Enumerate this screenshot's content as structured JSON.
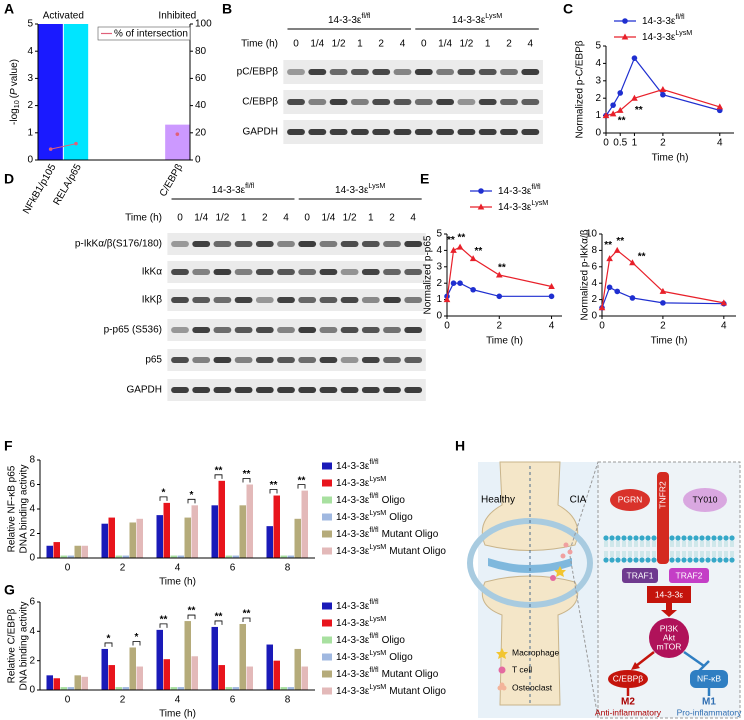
{
  "panel_labels": [
    "A",
    "B",
    "C",
    "D",
    "E",
    "F",
    "G",
    "H"
  ],
  "panel_a": {
    "type": "bar",
    "group_labels": [
      "Activated",
      "Inhibited"
    ],
    "y_label_parts": [
      "-log",
      "10",
      "(",
      "P",
      "value)"
    ],
    "categories": [
      "NFkB1/p105",
      "RELA/p65",
      null,
      null,
      null,
      "C/EBPβ"
    ],
    "values": [
      5,
      5,
      null,
      null,
      null,
      1.3
    ],
    "colors": [
      "#1a1aff",
      "#00e5ff",
      null,
      null,
      null,
      "#cc99ff"
    ],
    "line": {
      "name": "% of intersection",
      "color": "#e0607a",
      "values": [
        8,
        12,
        null,
        null,
        null,
        19
      ],
      "axis": "y2"
    },
    "ylim": [
      0,
      5
    ],
    "yticks": [
      0,
      1,
      2,
      3,
      4,
      5
    ],
    "y2lim": [
      0,
      100
    ],
    "y2ticks": [
      0,
      20,
      40,
      60,
      80,
      100
    ]
  },
  "panel_b": {
    "groups": [
      {
        "base": "14-3-3ε",
        "sup": "fl/fl"
      },
      {
        "base": "14-3-3ε",
        "sup": "LysM"
      }
    ],
    "time_label": "Time (h)",
    "times": [
      "0",
      "1/4",
      "1/2",
      "1",
      "2",
      "4"
    ],
    "rows": [
      "pC/EBPβ",
      "C/EBPβ",
      "GAPDH"
    ]
  },
  "panel_c": {
    "type": "line",
    "y_label": "Normalized p-C/EBPβ",
    "x_label": "Time (h)",
    "x": [
      0,
      0.25,
      0.5,
      1,
      2,
      4
    ],
    "series": [
      {
        "name": "14-3-3ε",
        "name_sup": "fl/fl",
        "color": "#1f2fd0",
        "marker": "circle",
        "values": [
          1.0,
          1.6,
          2.3,
          4.3,
          2.2,
          1.3
        ]
      },
      {
        "name": "14-3-3ε",
        "name_sup": "LysM",
        "color": "#e8202a",
        "marker": "triangle",
        "values": [
          1.0,
          1.1,
          1.3,
          2.0,
          2.5,
          1.5
        ]
      }
    ],
    "annotations": [
      "**",
      "**"
    ],
    "xlim": [
      0,
      4.5
    ],
    "xticks": [
      0,
      0.5,
      1,
      2,
      4
    ],
    "ylim": [
      0,
      5
    ],
    "yticks": [
      0,
      1,
      2,
      3,
      4,
      5
    ]
  },
  "panel_d": {
    "groups": [
      {
        "base": "14-3-3ε",
        "sup": "fl/fl"
      },
      {
        "base": "14-3-3ε",
        "sup": "LysM"
      }
    ],
    "time_label": "Time (h)",
    "times": [
      "0",
      "1/4",
      "1/2",
      "1",
      "2",
      "4"
    ],
    "rows": [
      "p-IkKα/β(S176/180)",
      "IkKα",
      "IkKβ",
      "p-p65 (S536)",
      "p65",
      "GAPDH"
    ]
  },
  "panel_e": {
    "legend": [
      {
        "name": "14-3-3ε",
        "name_sup": "fl/fl",
        "color": "#1f2fd0",
        "marker": "circle"
      },
      {
        "name": "14-3-3ε",
        "name_sup": "LysM",
        "color": "#e8202a",
        "marker": "triangle"
      }
    ],
    "charts": [
      {
        "type": "line",
        "y_label": "Normalized p-p65",
        "x_label": "Time (h)",
        "x": [
          0,
          0.25,
          0.5,
          1,
          2,
          4
        ],
        "series": [
          {
            "values": [
              1.2,
              2.0,
              2.0,
              1.6,
              1.2,
              1.2
            ]
          },
          {
            "values": [
              1.0,
              4.0,
              4.2,
              3.5,
              2.5,
              1.8
            ]
          }
        ],
        "annotations": [
          "**",
          "**",
          "**",
          "**"
        ],
        "xlim": [
          0,
          4.4
        ],
        "xticks": [
          0,
          2,
          4
        ],
        "ylim": [
          0,
          5
        ],
        "yticks": [
          0,
          1,
          2,
          3,
          4,
          5
        ]
      },
      {
        "type": "line",
        "y_label": "Normalized p-IkKα/β",
        "x_label": "Time (h)",
        "x": [
          0,
          0.25,
          0.5,
          1,
          2,
          4
        ],
        "series": [
          {
            "values": [
              1.0,
              3.5,
              3.0,
              2.2,
              1.6,
              1.5
            ]
          },
          {
            "values": [
              1.0,
              7.0,
              8.0,
              6.5,
              3.0,
              1.6
            ]
          }
        ],
        "annotations": [
          "**",
          "**",
          "**"
        ],
        "xlim": [
          0,
          4.4
        ],
        "xticks": [
          0,
          2,
          4
        ],
        "ylim": [
          0,
          10
        ],
        "yticks": [
          0,
          2,
          4,
          6,
          8,
          10
        ]
      }
    ]
  },
  "panel_f": {
    "type": "bar",
    "y_label": [
      "Relative NF-κB p65",
      "DNA binding activity"
    ],
    "x_label": "Time (h)",
    "categories": [
      "0",
      "2",
      "4",
      "6",
      "8"
    ],
    "series": [
      {
        "name": "14-3-3ε",
        "name_sup": "fl/fl",
        "color": "#1a1ab8",
        "values": [
          1.0,
          2.8,
          3.5,
          4.3,
          2.6
        ]
      },
      {
        "name": "14-3-3ε",
        "name_sup": "LysM",
        "color": "#e8141c",
        "values": [
          1.3,
          3.3,
          4.5,
          6.3,
          5.1
        ]
      },
      {
        "name": "14-3-3ε",
        "name_sup": "fl/fl",
        "name_suffix": "Oligo",
        "color": "#a8e0a0",
        "values": [
          0.2,
          0.2,
          0.2,
          0.2,
          0.2
        ]
      },
      {
        "name": "14-3-3ε",
        "name_sup": "LysM",
        "name_suffix": "Oligo",
        "color": "#a0b8e0",
        "values": [
          0.2,
          0.2,
          0.2,
          0.2,
          0.2
        ]
      },
      {
        "name": "14-3-3ε",
        "name_sup": "fl/fl",
        "name_suffix": "Mutant Oligo",
        "color": "#b5ab7a",
        "values": [
          1.0,
          2.9,
          3.3,
          4.3,
          3.2
        ]
      },
      {
        "name": "14-3-3ε",
        "name_sup": "LysM",
        "name_suffix": "Mutant Oligo",
        "color": "#e3b9b9",
        "values": [
          1.0,
          3.2,
          4.3,
          6.0,
          5.5
        ]
      }
    ],
    "annotations": [
      "*",
      "*",
      "**",
      "**",
      "**",
      "**"
    ],
    "ylim": [
      0,
      8
    ],
    "yticks": [
      0,
      2,
      4,
      6,
      8
    ]
  },
  "panel_g": {
    "type": "bar",
    "y_label": [
      "Relative C/EBPβ",
      "DNA binding activity"
    ],
    "x_label": "Time (h)",
    "categories": [
      "0",
      "2",
      "4",
      "6",
      "8"
    ],
    "series": [
      {
        "name": "14-3-3ε",
        "name_sup": "fl/fl",
        "color": "#1a1ab8",
        "values": [
          1.0,
          2.8,
          4.1,
          4.3,
          3.1
        ]
      },
      {
        "name": "14-3-3ε",
        "name_sup": "LysM",
        "color": "#e8141c",
        "values": [
          0.8,
          1.7,
          2.1,
          1.7,
          2.0
        ]
      },
      {
        "name": "14-3-3ε",
        "name_sup": "fl/fl",
        "name_suffix": "Oligo",
        "color": "#a8e0a0",
        "values": [
          0.2,
          0.2,
          0.2,
          0.2,
          0.2
        ]
      },
      {
        "name": "14-3-3ε",
        "name_sup": "LysM",
        "name_suffix": "Oligo",
        "color": "#a0b8e0",
        "values": [
          0.2,
          0.2,
          0.2,
          0.2,
          0.2
        ]
      },
      {
        "name": "14-3-3ε",
        "name_sup": "fl/fl",
        "name_suffix": "Mutant Oligo",
        "color": "#b5ab7a",
        "values": [
          1.0,
          2.9,
          4.7,
          4.5,
          2.8
        ]
      },
      {
        "name": "14-3-3ε",
        "name_sup": "LysM",
        "name_suffix": "Mutant Oligo",
        "color": "#e3b9b9",
        "values": [
          0.9,
          1.6,
          2.3,
          1.6,
          1.6
        ]
      }
    ],
    "annotations": [
      "*",
      "*",
      "**",
      "**",
      "**",
      "**"
    ],
    "ylim": [
      0,
      6
    ],
    "yticks": [
      0,
      2,
      4,
      6
    ]
  },
  "panel_h": {
    "left_labels": [
      "Healthy",
      "CIA"
    ],
    "ligand": "PGRN",
    "receptor": "TNFR2",
    "drug": "TY010",
    "adaptors": [
      "TRAF1",
      "TRAF2"
    ],
    "hub": "14-3-3ε",
    "kinase": [
      "PI3K",
      "Akt",
      "mTOR"
    ],
    "factors": [
      "C/EBPβ",
      "NF-κB"
    ],
    "outcomes": [
      "M2",
      "M1"
    ],
    "outcome_labels": [
      "Anti-inflammatory",
      "Pro-inflammatory"
    ],
    "legend": [
      "Macrophage",
      "T cell",
      "Osteoclast"
    ]
  }
}
